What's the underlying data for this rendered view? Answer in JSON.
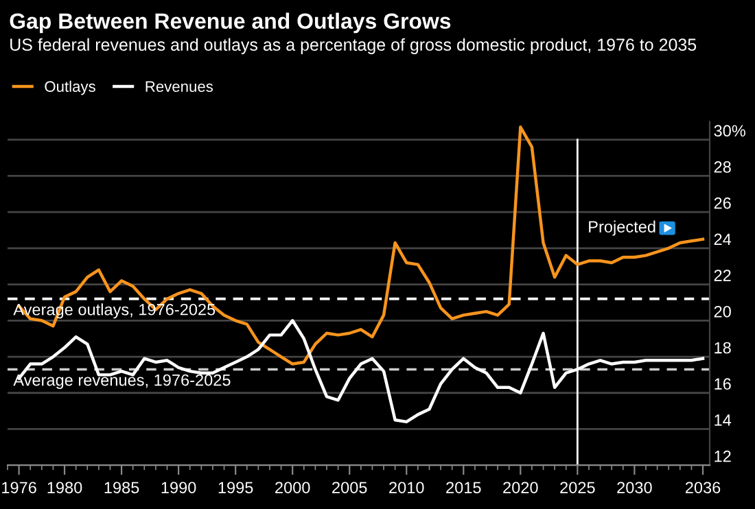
{
  "chart_data": {
    "type": "line",
    "title": "Gap Between Revenue and Outlays Grows",
    "subtitle": "US federal revenues and outlays as a percentage of gross domestic product, 1976 to 2035",
    "x": [
      1976,
      1977,
      1978,
      1979,
      1980,
      1981,
      1982,
      1983,
      1984,
      1985,
      1986,
      1987,
      1988,
      1989,
      1990,
      1991,
      1992,
      1993,
      1994,
      1995,
      1996,
      1997,
      1998,
      1999,
      2000,
      2001,
      2002,
      2003,
      2004,
      2005,
      2006,
      2007,
      2008,
      2009,
      2010,
      2011,
      2012,
      2013,
      2014,
      2015,
      2016,
      2017,
      2018,
      2019,
      2020,
      2021,
      2022,
      2023,
      2024,
      2025,
      2026,
      2027,
      2028,
      2029,
      2030,
      2031,
      2032,
      2033,
      2034,
      2035,
      2036
    ],
    "series": [
      {
        "name": "Outlays",
        "color": "#f7941d",
        "values": [
          20.8,
          20.1,
          20.0,
          19.7,
          21.3,
          21.6,
          22.4,
          22.8,
          21.6,
          22.2,
          21.9,
          21.2,
          20.6,
          21.2,
          21.5,
          21.7,
          21.5,
          20.8,
          20.3,
          20.0,
          19.8,
          18.8,
          18.4,
          18.0,
          17.6,
          17.7,
          18.7,
          19.3,
          19.2,
          19.3,
          19.5,
          19.1,
          20.3,
          24.3,
          23.2,
          23.1,
          22.1,
          20.7,
          20.1,
          20.3,
          20.4,
          20.5,
          20.3,
          20.9,
          30.7,
          29.6,
          24.3,
          22.4,
          23.6,
          23.1,
          23.3,
          23.3,
          23.2,
          23.5,
          23.5,
          23.6,
          23.8,
          24.0,
          24.3,
          24.4,
          24.5
        ]
      },
      {
        "name": "Revenues",
        "color": "#ffffff",
        "values": [
          16.8,
          17.6,
          17.6,
          18.0,
          18.5,
          19.1,
          18.7,
          17.0,
          17.0,
          17.2,
          17.0,
          17.9,
          17.7,
          17.8,
          17.4,
          17.2,
          17.1,
          17.1,
          17.4,
          17.7,
          18.0,
          18.4,
          19.2,
          19.2,
          20.0,
          19.0,
          17.3,
          15.8,
          15.6,
          16.8,
          17.6,
          17.9,
          17.2,
          14.5,
          14.4,
          14.8,
          15.1,
          16.5,
          17.3,
          17.9,
          17.4,
          17.1,
          16.3,
          16.3,
          16.0,
          17.6,
          19.3,
          16.3,
          17.1,
          17.3,
          17.6,
          17.8,
          17.6,
          17.7,
          17.7,
          17.8,
          17.8,
          17.8,
          17.8,
          17.8,
          17.9
        ]
      }
    ],
    "xlim": [
      1975,
      2036.6
    ],
    "xticks": [
      1976,
      1980,
      1985,
      1990,
      1995,
      2000,
      2005,
      2010,
      2015,
      2020,
      2025,
      2030,
      2036
    ],
    "ylim": [
      12,
      31
    ],
    "yticks": [
      12,
      14,
      16,
      18,
      20,
      22,
      24,
      26,
      28,
      {
        "value": 30,
        "label": "30%"
      }
    ],
    "ref_lines": [
      {
        "axis": "y",
        "value": 21.2,
        "label": "Average outlays, 1976-2025",
        "color": "#ffffff",
        "line_style": "dashed"
      },
      {
        "axis": "y",
        "value": 17.3,
        "label": "Average revenues, 1976-2025",
        "color": "#cccccc",
        "line_style": "dashed"
      },
      {
        "axis": "x",
        "value": 2025,
        "color": "#ffffff",
        "line_style": "solid"
      }
    ],
    "annotations": [
      "Projected"
    ],
    "grid": "y",
    "legend": "top left"
  }
}
